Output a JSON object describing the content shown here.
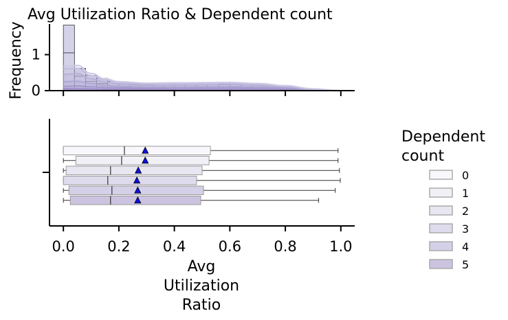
{
  "chart_data": [
    {
      "type": "histogram",
      "title": "Avg Utilization Ratio & Dependent count",
      "ylabel": "Frequency",
      "xlim": [
        -0.05,
        1.05
      ],
      "ylim": [
        0,
        1.85
      ],
      "yticks": [
        0,
        1
      ],
      "bins": {
        "edges": [
          0.0,
          0.04,
          0.08,
          0.12,
          0.16,
          0.2,
          0.24,
          0.28,
          0.32,
          0.36,
          0.4,
          0.44,
          0.48,
          0.52,
          0.56,
          0.6,
          0.64,
          0.68,
          0.72,
          0.76,
          0.8,
          0.84,
          0.88,
          0.92,
          0.96,
          1.0
        ],
        "stacked_counts": [
          1.82,
          0.62,
          0.42,
          0.34,
          0.26,
          0.22,
          0.18,
          0.17,
          0.16,
          0.15,
          0.15,
          0.15,
          0.16,
          0.17,
          0.18,
          0.22,
          0.19,
          0.16,
          0.15,
          0.12,
          0.1,
          0.07,
          0.05,
          0.03,
          0.01
        ],
        "inner_dividers": [
          1.05,
          0.4,
          0.26,
          0.2
        ]
      },
      "kde": [
        {
          "name": "5",
          "values": [
            0.05,
            0.05,
            0.045,
            0.04,
            0.035,
            0.03,
            0.03,
            0.03,
            0.025,
            0.02,
            0.01,
            0.0
          ]
        },
        {
          "name": "4",
          "values": [
            0.12,
            0.13,
            0.11,
            0.09,
            0.08,
            0.07,
            0.08,
            0.08,
            0.07,
            0.05,
            0.02,
            0.0
          ]
        },
        {
          "name": "3",
          "values": [
            0.25,
            0.26,
            0.2,
            0.15,
            0.12,
            0.1,
            0.1,
            0.11,
            0.1,
            0.08,
            0.03,
            0.0
          ]
        },
        {
          "name": "2",
          "values": [
            0.45,
            0.47,
            0.33,
            0.24,
            0.18,
            0.15,
            0.16,
            0.17,
            0.15,
            0.11,
            0.04,
            0.0
          ]
        },
        {
          "name": "1",
          "values": [
            0.6,
            0.62,
            0.42,
            0.3,
            0.22,
            0.19,
            0.2,
            0.21,
            0.18,
            0.13,
            0.05,
            0.0
          ]
        },
        {
          "name": "0",
          "values": [
            0.68,
            0.7,
            0.48,
            0.33,
            0.25,
            0.21,
            0.22,
            0.23,
            0.2,
            0.14,
            0.05,
            0.0
          ]
        }
      ],
      "kde_x": [
        0.0,
        0.05,
        0.1,
        0.15,
        0.2,
        0.3,
        0.4,
        0.6,
        0.7,
        0.8,
        0.9,
        1.0
      ]
    },
    {
      "type": "box",
      "xlabel": "Avg Utilization Ratio",
      "xlim": [
        -0.05,
        1.05
      ],
      "xticks": [
        "0.0",
        "0.2",
        "0.4",
        "0.6",
        "0.8",
        "1.0"
      ],
      "xtick_values": [
        0.0,
        0.2,
        0.4,
        0.6,
        0.8,
        1.0
      ],
      "legend": {
        "title": "Dependent count",
        "placement": "right"
      },
      "series": [
        {
          "name": "0",
          "min": 0.0,
          "q1": 0.0,
          "median": 0.22,
          "q3": 0.53,
          "max": 0.99,
          "mean": 0.295,
          "color": "#f8f7fb"
        },
        {
          "name": "1",
          "min": 0.0,
          "q1": 0.045,
          "median": 0.21,
          "q3": 0.525,
          "max": 0.99,
          "mean": 0.295,
          "color": "#f1f0f6"
        },
        {
          "name": "2",
          "min": 0.0,
          "q1": 0.01,
          "median": 0.17,
          "q3": 0.5,
          "max": 0.995,
          "mean": 0.27,
          "color": "#e8e6f1"
        },
        {
          "name": "3",
          "min": 0.0,
          "q1": 0.0,
          "median": 0.16,
          "q3": 0.48,
          "max": 0.998,
          "mean": 0.265,
          "color": "#dedcec"
        },
        {
          "name": "4",
          "min": 0.0,
          "q1": 0.02,
          "median": 0.175,
          "q3": 0.505,
          "max": 0.98,
          "mean": 0.268,
          "color": "#d4d0e7"
        },
        {
          "name": "5",
          "min": 0.0,
          "q1": 0.025,
          "median": 0.17,
          "q3": 0.495,
          "max": 0.92,
          "mean": 0.268,
          "color": "#cbc3e0"
        }
      ]
    }
  ],
  "colors": {
    "mean_marker": "#1010dd",
    "kde_5": "#5b2a9a",
    "kde_4": "#7a5cb0",
    "kde_3": "#958ac4",
    "kde_2": "#aba4d2",
    "kde_1": "#bdb8dc",
    "kde_0": "#cdc9e5",
    "hist_fill": "#cdcae4"
  }
}
